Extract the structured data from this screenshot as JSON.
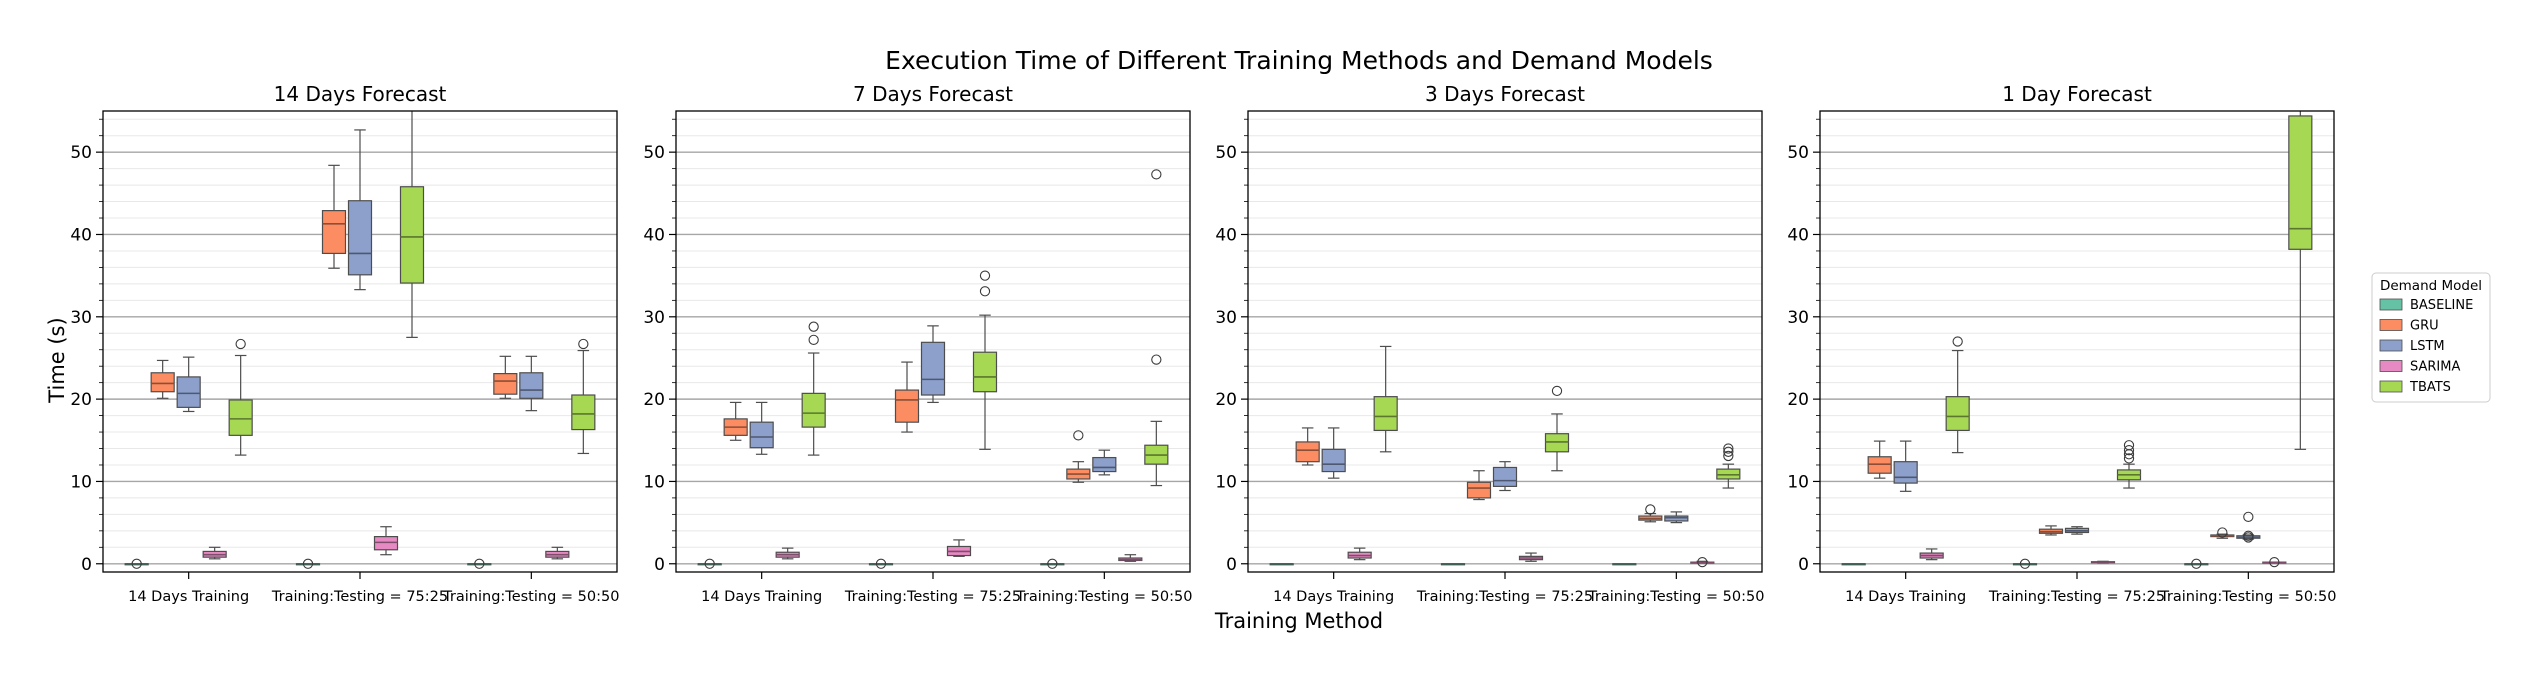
{
  "chart_data": {
    "type": "box",
    "title": "Execution Time of Different Training Methods and Demand Models",
    "xlabel": "Training Method",
    "ylabel": "Time (s)",
    "ylim": [
      -1,
      55
    ],
    "yticks": [
      0,
      10,
      20,
      30,
      40,
      50
    ],
    "grid": "horizontal major and minor",
    "legend": {
      "title": "Demand Model",
      "placement": "right-outside",
      "entries": [
        {
          "name": "BASELINE",
          "color": "#66c2a5"
        },
        {
          "name": "GRU",
          "color": "#fc8d62"
        },
        {
          "name": "LSTM",
          "color": "#8da0cb"
        },
        {
          "name": "SARIMA",
          "color": "#e78ac3"
        },
        {
          "name": "TBATS",
          "color": "#a6d854"
        }
      ]
    },
    "categories": [
      "14 Days Training",
      "Training:Testing = 75:25",
      "Training:Testing = 50:50"
    ],
    "panels": [
      {
        "title": "14 Days Forecast",
        "groups": [
          {
            "category": "14 Days Training",
            "boxes": [
              {
                "model": "BASELINE",
                "whislo": 0,
                "q1": 0,
                "med": 0,
                "q3": 0,
                "whishi": 0,
                "fliers": [
                  0
                ]
              },
              {
                "model": "GRU",
                "whislo": 20.1,
                "q1": 20.9,
                "med": 21.9,
                "q3": 23.2,
                "whishi": 24.7,
                "fliers": []
              },
              {
                "model": "LSTM",
                "whislo": 18.5,
                "q1": 19.0,
                "med": 20.7,
                "q3": 22.7,
                "whishi": 25.1,
                "fliers": []
              },
              {
                "model": "SARIMA",
                "whislo": 0.6,
                "q1": 0.8,
                "med": 1.1,
                "q3": 1.5,
                "whishi": 2.0,
                "fliers": []
              },
              {
                "model": "TBATS",
                "whislo": 13.2,
                "q1": 15.6,
                "med": 17.6,
                "q3": 19.9,
                "whishi": 25.3,
                "fliers": [
                  26.7
                ]
              }
            ]
          },
          {
            "category": "Training:Testing = 75:25",
            "boxes": [
              {
                "model": "BASELINE",
                "whislo": 0,
                "q1": 0,
                "med": 0,
                "q3": 0,
                "whishi": 0,
                "fliers": [
                  0
                ]
              },
              {
                "model": "GRU",
                "whislo": 35.9,
                "q1": 37.7,
                "med": 41.3,
                "q3": 42.9,
                "whishi": 48.4,
                "fliers": []
              },
              {
                "model": "LSTM",
                "whislo": 33.3,
                "q1": 35.1,
                "med": 37.7,
                "q3": 44.1,
                "whishi": 52.7,
                "fliers": []
              },
              {
                "model": "SARIMA",
                "whislo": 1.1,
                "q1": 1.7,
                "med": 2.6,
                "q3": 3.3,
                "whishi": 4.5,
                "fliers": []
              },
              {
                "model": "TBATS",
                "whislo": 27.5,
                "q1": 34.1,
                "med": 39.7,
                "q3": 45.8,
                "whishi": 55.5,
                "fliers": []
              }
            ]
          },
          {
            "category": "Training:Testing = 50:50",
            "boxes": [
              {
                "model": "BASELINE",
                "whislo": 0,
                "q1": 0,
                "med": 0,
                "q3": 0,
                "whishi": 0,
                "fliers": [
                  0
                ]
              },
              {
                "model": "GRU",
                "whislo": 20.1,
                "q1": 20.6,
                "med": 22.2,
                "q3": 23.1,
                "whishi": 25.2,
                "fliers": []
              },
              {
                "model": "LSTM",
                "whislo": 18.6,
                "q1": 20.1,
                "med": 21.1,
                "q3": 23.2,
                "whishi": 25.2,
                "fliers": []
              },
              {
                "model": "SARIMA",
                "whislo": 0.6,
                "q1": 0.8,
                "med": 1.1,
                "q3": 1.5,
                "whishi": 2.0,
                "fliers": []
              },
              {
                "model": "TBATS",
                "whislo": 13.4,
                "q1": 16.3,
                "med": 18.2,
                "q3": 20.5,
                "whishi": 25.9,
                "fliers": [
                  26.7
                ]
              }
            ]
          }
        ]
      },
      {
        "title": "7 Days Forecast",
        "groups": [
          {
            "category": "14 Days Training",
            "boxes": [
              {
                "model": "BASELINE",
                "whislo": 0,
                "q1": 0,
                "med": 0,
                "q3": 0,
                "whishi": 0,
                "fliers": [
                  0
                ]
              },
              {
                "model": "GRU",
                "whislo": 15.0,
                "q1": 15.6,
                "med": 16.6,
                "q3": 17.6,
                "whishi": 19.6,
                "fliers": []
              },
              {
                "model": "LSTM",
                "whislo": 13.3,
                "q1": 14.1,
                "med": 15.4,
                "q3": 17.2,
                "whishi": 19.6,
                "fliers": []
              },
              {
                "model": "SARIMA",
                "whislo": 0.6,
                "q1": 0.8,
                "med": 1.1,
                "q3": 1.4,
                "whishi": 1.9,
                "fliers": []
              },
              {
                "model": "TBATS",
                "whislo": 13.2,
                "q1": 16.6,
                "med": 18.3,
                "q3": 20.7,
                "whishi": 25.6,
                "fliers": [
                  27.2,
                  28.8
                ]
              }
            ]
          },
          {
            "category": "Training:Testing = 75:25",
            "boxes": [
              {
                "model": "BASELINE",
                "whislo": 0,
                "q1": 0,
                "med": 0,
                "q3": 0,
                "whishi": 0,
                "fliers": [
                  0
                ]
              },
              {
                "model": "GRU",
                "whislo": 16.0,
                "q1": 17.2,
                "med": 19.9,
                "q3": 21.1,
                "whishi": 24.5,
                "fliers": []
              },
              {
                "model": "LSTM",
                "whislo": 19.6,
                "q1": 20.5,
                "med": 22.4,
                "q3": 26.9,
                "whishi": 28.9,
                "fliers": []
              },
              {
                "model": "SARIMA",
                "whislo": 0.9,
                "q1": 1.0,
                "med": 1.5,
                "q3": 2.1,
                "whishi": 2.9,
                "fliers": []
              },
              {
                "model": "TBATS",
                "whislo": 13.9,
                "q1": 20.9,
                "med": 22.7,
                "q3": 25.7,
                "whishi": 30.2,
                "fliers": [
                  33.1,
                  35.0
                ]
              }
            ]
          },
          {
            "category": "Training:Testing = 50:50",
            "boxes": [
              {
                "model": "BASELINE",
                "whislo": 0,
                "q1": 0,
                "med": 0,
                "q3": 0,
                "whishi": 0,
                "fliers": [
                  0
                ]
              },
              {
                "model": "GRU",
                "whislo": 9.9,
                "q1": 10.3,
                "med": 10.9,
                "q3": 11.5,
                "whishi": 12.4,
                "fliers": [
                  15.6
                ]
              },
              {
                "model": "LSTM",
                "whislo": 10.8,
                "q1": 11.2,
                "med": 11.7,
                "q3": 12.9,
                "whishi": 13.8,
                "fliers": []
              },
              {
                "model": "SARIMA",
                "whislo": 0.3,
                "q1": 0.4,
                "med": 0.5,
                "q3": 0.7,
                "whishi": 1.1,
                "fliers": []
              },
              {
                "model": "TBATS",
                "whislo": 9.5,
                "q1": 12.1,
                "med": 13.2,
                "q3": 14.4,
                "whishi": 17.3,
                "fliers": [
                  24.8,
                  47.3
                ]
              }
            ]
          }
        ]
      },
      {
        "title": "3 Days Forecast",
        "groups": [
          {
            "category": "14 Days Training",
            "boxes": [
              {
                "model": "BASELINE",
                "whislo": 0,
                "q1": 0,
                "med": 0,
                "q3": 0,
                "whishi": 0,
                "fliers": []
              },
              {
                "model": "GRU",
                "whislo": 12.0,
                "q1": 12.4,
                "med": 13.8,
                "q3": 14.8,
                "whishi": 16.5,
                "fliers": []
              },
              {
                "model": "LSTM",
                "whislo": 10.4,
                "q1": 11.2,
                "med": 12.1,
                "q3": 13.9,
                "whishi": 16.5,
                "fliers": []
              },
              {
                "model": "SARIMA",
                "whislo": 0.5,
                "q1": 0.7,
                "med": 1.0,
                "q3": 1.4,
                "whishi": 1.9,
                "fliers": []
              },
              {
                "model": "TBATS",
                "whislo": 13.6,
                "q1": 16.2,
                "med": 17.9,
                "q3": 20.3,
                "whishi": 26.4,
                "fliers": []
              }
            ]
          },
          {
            "category": "Training:Testing = 75:25",
            "boxes": [
              {
                "model": "BASELINE",
                "whislo": 0,
                "q1": 0,
                "med": 0,
                "q3": 0,
                "whishi": 0,
                "fliers": []
              },
              {
                "model": "GRU",
                "whislo": 7.8,
                "q1": 8.0,
                "med": 9.2,
                "q3": 9.9,
                "whishi": 11.3,
                "fliers": []
              },
              {
                "model": "LSTM",
                "whislo": 8.9,
                "q1": 9.4,
                "med": 10.1,
                "q3": 11.7,
                "whishi": 12.4,
                "fliers": []
              },
              {
                "model": "SARIMA",
                "whislo": 0.3,
                "q1": 0.5,
                "med": 0.7,
                "q3": 0.9,
                "whishi": 1.3,
                "fliers": []
              },
              {
                "model": "TBATS",
                "whislo": 11.3,
                "q1": 13.6,
                "med": 14.8,
                "q3": 15.8,
                "whishi": 18.2,
                "fliers": [
                  21.0
                ]
              }
            ]
          },
          {
            "category": "Training:Testing = 50:50",
            "boxes": [
              {
                "model": "BASELINE",
                "whislo": 0,
                "q1": 0,
                "med": 0,
                "q3": 0,
                "whishi": 0,
                "fliers": []
              },
              {
                "model": "GRU",
                "whislo": 5.1,
                "q1": 5.3,
                "med": 5.5,
                "q3": 5.8,
                "whishi": 6.1,
                "fliers": [
                  6.6
                ]
              },
              {
                "model": "LSTM",
                "whislo": 5.0,
                "q1": 5.2,
                "med": 5.6,
                "q3": 5.8,
                "whishi": 6.3,
                "fliers": []
              },
              {
                "model": "SARIMA",
                "whislo": 0.1,
                "q1": 0.1,
                "med": 0.15,
                "q3": 0.2,
                "whishi": 0.3,
                "fliers": [
                  0.2
                ]
              },
              {
                "model": "TBATS",
                "whislo": 9.2,
                "q1": 10.3,
                "med": 10.8,
                "q3": 11.5,
                "whishi": 12.1,
                "fliers": [
                  13.1,
                  13.6,
                  14.0
                ]
              }
            ]
          }
        ]
      },
      {
        "title": "1 Day Forecast",
        "groups": [
          {
            "category": "14 Days Training",
            "boxes": [
              {
                "model": "BASELINE",
                "whislo": 0,
                "q1": 0,
                "med": 0,
                "q3": 0,
                "whishi": 0,
                "fliers": []
              },
              {
                "model": "GRU",
                "whislo": 10.4,
                "q1": 11.0,
                "med": 12.1,
                "q3": 13.0,
                "whishi": 14.9,
                "fliers": []
              },
              {
                "model": "LSTM",
                "whislo": 8.8,
                "q1": 9.8,
                "med": 10.5,
                "q3": 12.4,
                "whishi": 14.9,
                "fliers": []
              },
              {
                "model": "SARIMA",
                "whislo": 0.5,
                "q1": 0.7,
                "med": 1.0,
                "q3": 1.3,
                "whishi": 1.8,
                "fliers": []
              },
              {
                "model": "TBATS",
                "whislo": 13.5,
                "q1": 16.2,
                "med": 17.9,
                "q3": 20.3,
                "whishi": 25.9,
                "fliers": [
                  27.0
                ]
              }
            ]
          },
          {
            "category": "Training:Testing = 75:25",
            "boxes": [
              {
                "model": "BASELINE",
                "whislo": 0,
                "q1": 0,
                "med": 0,
                "q3": 0,
                "whishi": 0,
                "fliers": [
                  0
                ]
              },
              {
                "model": "GRU",
                "whislo": 3.5,
                "q1": 3.7,
                "med": 3.9,
                "q3": 4.2,
                "whishi": 4.6,
                "fliers": []
              },
              {
                "model": "LSTM",
                "whislo": 3.6,
                "q1": 3.8,
                "med": 4.0,
                "q3": 4.3,
                "whishi": 4.5,
                "fliers": []
              },
              {
                "model": "SARIMA",
                "whislo": 0.1,
                "q1": 0.15,
                "med": 0.2,
                "q3": 0.25,
                "whishi": 0.3,
                "fliers": []
              },
              {
                "model": "TBATS",
                "whislo": 9.2,
                "q1": 10.2,
                "med": 10.8,
                "q3": 11.4,
                "whishi": 12.1,
                "fliers": [
                  12.8,
                  13.3,
                  13.8,
                  14.4
                ]
              }
            ]
          },
          {
            "category": "Training:Testing = 50:50",
            "boxes": [
              {
                "model": "BASELINE",
                "whislo": 0,
                "q1": 0,
                "med": 0,
                "q3": 0,
                "whishi": 0,
                "fliers": [
                  0
                ]
              },
              {
                "model": "GRU",
                "whislo": 3.1,
                "q1": 3.3,
                "med": 3.4,
                "q3": 3.5,
                "whishi": 3.6,
                "fliers": [
                  3.8
                ]
              },
              {
                "model": "LSTM",
                "whislo": 3.0,
                "q1": 3.1,
                "med": 3.2,
                "q3": 3.4,
                "whishi": 3.5,
                "fliers": [
                  3.2,
                  3.4,
                  5.7
                ]
              },
              {
                "model": "SARIMA",
                "whislo": 0.1,
                "q1": 0.1,
                "med": 0.15,
                "q3": 0.2,
                "whishi": 0.2,
                "fliers": [
                  0.2
                ]
              },
              {
                "model": "TBATS",
                "whislo": 13.9,
                "q1": 38.2,
                "med": 40.7,
                "q3": 54.4,
                "whishi": 55.5,
                "fliers": []
              }
            ]
          }
        ]
      }
    ]
  }
}
